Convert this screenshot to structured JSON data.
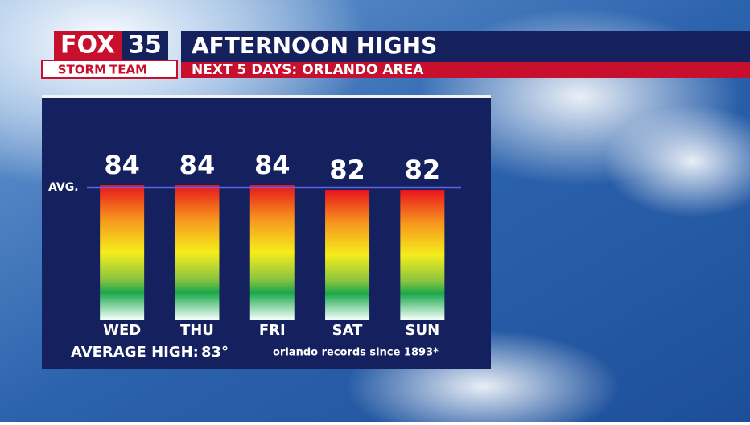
{
  "chart_data": {
    "type": "bar",
    "logo": {
      "brand": "FOX",
      "channel": "35",
      "team_left": "STORM",
      "team_right": "TEAM"
    },
    "title": "AFTERNOON HIGHS",
    "subtitle": "NEXT 5 DAYS: ORLANDO AREA",
    "categories": [
      "WED",
      "THU",
      "FRI",
      "SAT",
      "SUN"
    ],
    "values": [
      84,
      84,
      84,
      82,
      82
    ],
    "reference_line_label": "AVG.",
    "average": {
      "label": "AVERAGE HIGH:",
      "value": 83,
      "value_label": "83°"
    },
    "note": "orlando records since 1893*"
  }
}
